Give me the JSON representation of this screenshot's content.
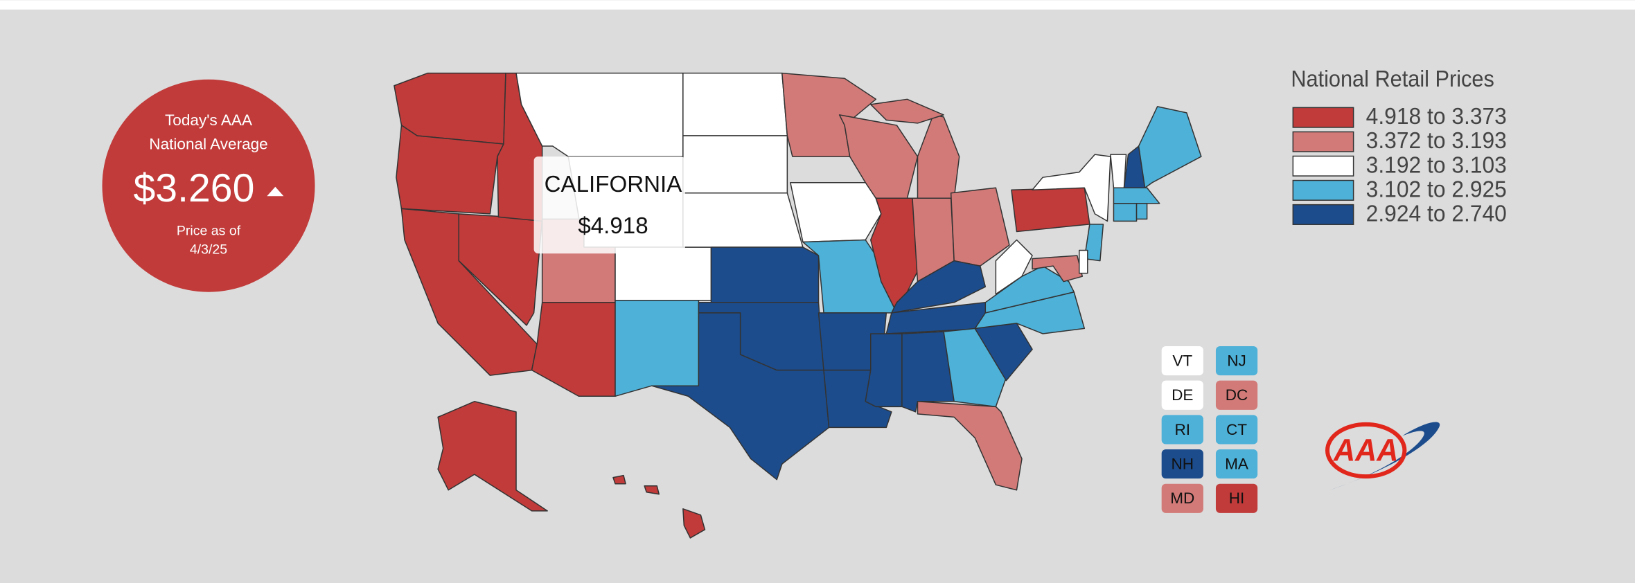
{
  "badge": {
    "line1": "Today's AAA",
    "line2": "National Average",
    "price": "$3.260",
    "date_line1": "Price as of",
    "date_line2": "4/3/25"
  },
  "tooltip": {
    "state": "CALIFORNIA",
    "price": "$4.918"
  },
  "legend": {
    "title": "National Retail Prices",
    "items": [
      {
        "label": "4.918 to 3.373",
        "color": "#c03b3a"
      },
      {
        "label": "3.372 to 3.193",
        "color": "#d27a78"
      },
      {
        "label": "3.192 to 3.103",
        "color": "#ffffff"
      },
      {
        "label": "3.102 to 2.925",
        "color": "#4eb1d8"
      },
      {
        "label": "2.924 to 2.740",
        "color": "#1c4c8c"
      }
    ]
  },
  "small_states": [
    {
      "label": "VT",
      "color": "#ffffff"
    },
    {
      "label": "NJ",
      "color": "#4eb1d8"
    },
    {
      "label": "DE",
      "color": "#ffffff"
    },
    {
      "label": "DC",
      "color": "#d27a78"
    },
    {
      "label": "RI",
      "color": "#4eb1d8"
    },
    {
      "label": "CT",
      "color": "#4eb1d8"
    },
    {
      "label": "NH",
      "color": "#1c4c8c"
    },
    {
      "label": "MA",
      "color": "#4eb1d8"
    },
    {
      "label": "MD",
      "color": "#d27a78"
    },
    {
      "label": "HI",
      "color": "#c03b3a"
    }
  ],
  "logo": "AAA"
}
